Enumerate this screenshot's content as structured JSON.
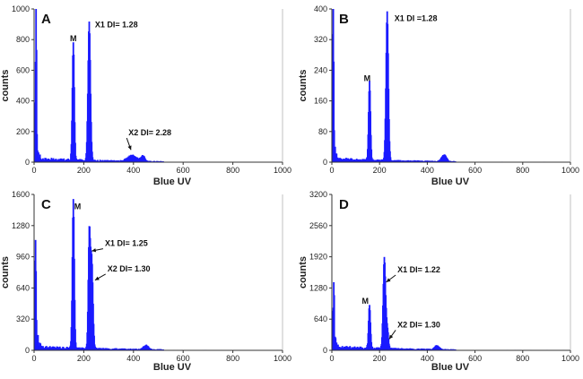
{
  "chart_data": [
    {
      "panel": "A",
      "type": "histogram",
      "xlabel": "Blue UV",
      "ylabel": "counts",
      "xlim": [
        0,
        1000
      ],
      "ylim": [
        0,
        1000
      ],
      "xticks": [
        0,
        200,
        400,
        600,
        800,
        1000
      ],
      "yticks": [
        0,
        200,
        400,
        600,
        800,
        1000
      ],
      "peaks": [
        {
          "x": 8,
          "y": 950,
          "w": 2
        },
        {
          "x": 158,
          "y": 775,
          "w": 4
        },
        {
          "x": 222,
          "y": 905,
          "w": 5
        },
        {
          "x": 395,
          "y": 40,
          "w": 18
        },
        {
          "x": 438,
          "y": 35,
          "w": 8
        }
      ],
      "annotations": [
        {
          "text": "M",
          "x": 158,
          "y": 790
        },
        {
          "text": "X1 DI= 1.28",
          "x": 245,
          "y": 880
        },
        {
          "text": "X2 DI= 2.28",
          "x": 380,
          "y": 175,
          "arrow_to": [
            390,
            80
          ]
        }
      ]
    },
    {
      "panel": "B",
      "type": "histogram",
      "xlabel": "Blue UV",
      "ylabel": "counts",
      "xlim": [
        0,
        1000
      ],
      "ylim": [
        0,
        400
      ],
      "xticks": [
        0,
        200,
        400,
        600,
        800,
        1000
      ],
      "yticks": [
        0,
        80,
        160,
        240,
        320,
        400
      ],
      "peaks": [
        {
          "x": 6,
          "y": 390,
          "w": 2
        },
        {
          "x": 158,
          "y": 205,
          "w": 4
        },
        {
          "x": 232,
          "y": 388,
          "w": 5
        },
        {
          "x": 470,
          "y": 18,
          "w": 10
        }
      ],
      "annotations": [
        {
          "text": "M",
          "x": 148,
          "y": 212
        },
        {
          "text": "X1 DI =1.28",
          "x": 262,
          "y": 368
        }
      ]
    },
    {
      "panel": "C",
      "type": "histogram",
      "xlabel": "Blue UV",
      "ylabel": "counts",
      "xlim": [
        0,
        1000
      ],
      "ylim": [
        0,
        1600
      ],
      "xticks": [
        0,
        200,
        400,
        600,
        800,
        1000
      ],
      "yticks": [
        0,
        320,
        640,
        960,
        1280,
        1600
      ],
      "peaks": [
        {
          "x": 6,
          "y": 920,
          "w": 2
        },
        {
          "x": 158,
          "y": 1530,
          "w": 4
        },
        {
          "x": 222,
          "y": 1130,
          "w": 4
        },
        {
          "x": 232,
          "y": 930,
          "w": 5
        },
        {
          "x": 450,
          "y": 45,
          "w": 10
        }
      ],
      "annotations": [
        {
          "text": "M",
          "x": 175,
          "y": 1450
        },
        {
          "text": "X1 DI= 1.25",
          "x": 285,
          "y": 1070,
          "arrow_to": [
            232,
            1020
          ]
        },
        {
          "text": "X2 DI= 1.30",
          "x": 295,
          "y": 810,
          "arrow_to": [
            245,
            720
          ]
        }
      ]
    },
    {
      "panel": "D",
      "type": "histogram",
      "xlabel": "Blue UV",
      "ylabel": "counts",
      "xlim": [
        0,
        1000
      ],
      "ylim": [
        0,
        3200
      ],
      "xticks": [
        0,
        200,
        400,
        600,
        800,
        1000
      ],
      "yticks": [
        0,
        640,
        1280,
        1920,
        2560,
        3200
      ],
      "peaks": [
        {
          "x": 8,
          "y": 1040,
          "w": 2
        },
        {
          "x": 158,
          "y": 900,
          "w": 4
        },
        {
          "x": 220,
          "y": 1850,
          "w": 5
        },
        {
          "x": 232,
          "y": 420,
          "w": 5
        },
        {
          "x": 440,
          "y": 80,
          "w": 10
        }
      ],
      "annotations": [
        {
          "text": "M",
          "x": 140,
          "y": 960
        },
        {
          "text": "X1 DI= 1.22",
          "x": 275,
          "y": 1600,
          "arrow_to": [
            228,
            1400
          ]
        },
        {
          "text": "X2 DI= 1.30",
          "x": 275,
          "y": 470,
          "arrow_to": [
            240,
            230
          ]
        }
      ]
    }
  ],
  "colors": {
    "bar": "#1a1aff",
    "axis": "#333333"
  }
}
